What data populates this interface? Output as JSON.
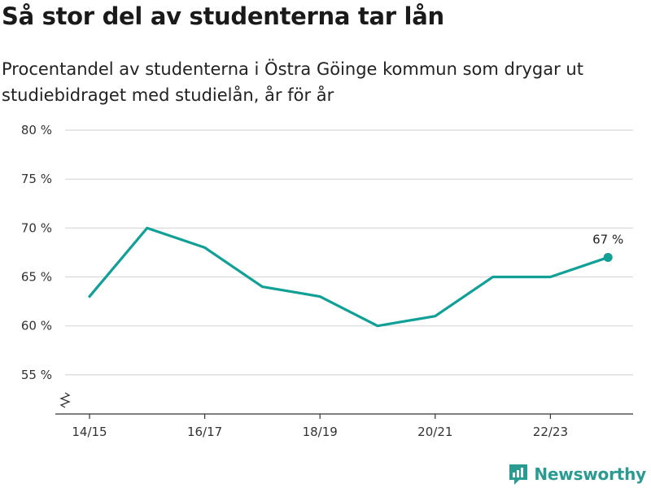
{
  "title": "Så stor del av studenterna tar lån",
  "subtitle": "Procentandel av studenterna i Östra Göinge kommun som drygar ut studiebidraget med studielån, år för år",
  "brand": {
    "name": "Newsworthy",
    "icon": "newsworthy-logo-icon",
    "color": "#2a9b90"
  },
  "chart_data": {
    "type": "line",
    "title": "Så stor del av studenterna tar lån",
    "xlabel": "",
    "ylabel": "",
    "x": [
      "14/15",
      "15/16",
      "16/17",
      "17/18",
      "18/19",
      "19/20",
      "20/21",
      "21/22",
      "22/23",
      "23/24"
    ],
    "x_tick_labels": [
      "14/15",
      "16/17",
      "18/19",
      "20/21",
      "22/23"
    ],
    "series": [
      {
        "values": [
          63,
          70,
          68,
          64,
          63,
          60,
          61,
          65,
          65,
          67
        ],
        "color": "#11a096"
      }
    ],
    "y_ticks": [
      55,
      60,
      65,
      70,
      75,
      80
    ],
    "y_tick_labels": [
      "55 %",
      "60 %",
      "65 %",
      "70 %",
      "75 %",
      "80 %"
    ],
    "ylim": [
      51,
      80
    ],
    "y_axis_broken": true,
    "grid": true,
    "end_label": "67 %",
    "legend": "none"
  }
}
